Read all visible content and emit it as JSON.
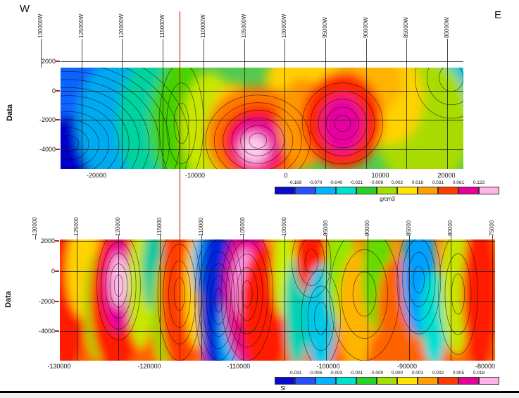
{
  "compass": {
    "west": "W",
    "east": "E"
  },
  "marker": {
    "color": "#b40000"
  },
  "sections": {
    "density": {
      "y_axis_label": "Data",
      "top_axis_ticks": [
        "130000W",
        "125000W",
        "120000W",
        "115000W",
        "110000W",
        "105000W",
        "100000W",
        "95000W",
        "90000W",
        "85000W",
        "80000W"
      ],
      "y_axis_ticks": [
        "2000",
        "0",
        "-2000",
        "-4000"
      ],
      "x_axis_ticks": [
        "-20000",
        "-10000",
        "0",
        "10000",
        "20000"
      ],
      "colorbar": {
        "ticks": [
          "-0.169",
          "-0.070",
          "-0.040",
          "-0.021",
          "-0.009",
          "0.002",
          "0.016",
          "0.031",
          "0.061",
          "0.123"
        ],
        "unit": "g/cm3",
        "segments": [
          "#0a0ac8",
          "#2850ff",
          "#00b4ff",
          "#00e0d0",
          "#28d028",
          "#a0e000",
          "#ffe400",
          "#ffa000",
          "#ff3c00",
          "#e60096",
          "#ffb4e6"
        ]
      }
    },
    "susceptibility": {
      "y_axis_label": "Data",
      "top_axis_ticks": [
        "130000",
        "125000",
        "120000",
        "115000",
        "110000",
        "105000",
        "100000",
        "95000",
        "90000",
        "85000",
        "80000",
        "75000"
      ],
      "y_axis_ticks": [
        "2000",
        "0",
        "-2000",
        "-4000"
      ],
      "x_axis_ticks": [
        "-130000",
        "-120000",
        "-110000",
        "-100000",
        "-90000",
        "-80000"
      ],
      "colorbar": {
        "ticks": [
          "-0.031",
          "-0.006",
          "-0.003",
          "-0.001",
          "-0.000",
          "0.000",
          "0.001",
          "0.002",
          "0.005",
          "0.018"
        ],
        "unit": "SI",
        "segments": [
          "#0a0ac8",
          "#2850ff",
          "#00b4ff",
          "#00e0d0",
          "#28d028",
          "#a0e000",
          "#ffe400",
          "#ffa000",
          "#ff3c00",
          "#e60096",
          "#ffb4e6"
        ]
      }
    }
  },
  "chart_data": [
    {
      "name": "density_model_section",
      "type": "heatmap",
      "units": "g/cm3",
      "y_axis_label": "Data",
      "y_axis_ticks": [
        2000,
        0,
        -2000,
        -4000
      ],
      "x_axis_bottom_ticks": [
        -20000,
        -10000,
        0,
        10000,
        20000
      ],
      "x_axis_top_ticks": [
        "130000W",
        "125000W",
        "120000W",
        "115000W",
        "110000W",
        "105000W",
        "100000W",
        "95000W",
        "90000W",
        "85000W",
        "80000W"
      ],
      "colorbar_ticks": [
        -0.169,
        -0.07,
        -0.04,
        -0.021,
        -0.009,
        0.002,
        0.016,
        0.031,
        0.061,
        0.123
      ],
      "description": "Contoured density section: strong low (blue) at west end, two dense highs with magenta/pink cores near centre and east, green/yellow background, red marker line near 115000W.",
      "base_color": "#55c94f",
      "blur": 7,
      "features": [
        {
          "cx": 0.97,
          "cy": 0.1,
          "rx": 0.1,
          "ry": 0.45,
          "c": "#00c8dc"
        },
        {
          "cx": 0.9,
          "cy": 0.55,
          "rx": 0.12,
          "ry": 0.65,
          "c": "#a8dc00"
        },
        {
          "cx": 0.82,
          "cy": 0.3,
          "rx": 0.08,
          "ry": 0.45,
          "c": "#ffd200"
        },
        {
          "cx": 0.1,
          "cy": 0.06,
          "rx": 0.12,
          "ry": 0.2,
          "c": "#00c8b4"
        },
        {
          "cx": 0.03,
          "cy": 0.35,
          "rx": 0.14,
          "ry": 0.6,
          "c": "#0a64ff"
        },
        {
          "cx": 0.02,
          "cy": 0.9,
          "rx": 0.12,
          "ry": 0.42,
          "c": "#0000cd"
        },
        {
          "cx": 0.14,
          "cy": 0.55,
          "rx": 0.1,
          "ry": 0.62,
          "c": "#00aaf0"
        },
        {
          "cx": 0.22,
          "cy": 0.55,
          "rx": 0.08,
          "ry": 0.62,
          "c": "#00d2a0"
        },
        {
          "cx": 0.3,
          "cy": 0.55,
          "rx": 0.08,
          "ry": 0.62,
          "c": "#46d200"
        },
        {
          "cx": 0.37,
          "cy": 0.6,
          "rx": 0.07,
          "ry": 0.55,
          "c": "#c8e600"
        },
        {
          "cx": 0.43,
          "cy": 0.65,
          "rx": 0.06,
          "ry": 0.5,
          "c": "#ffc800"
        },
        {
          "cx": 0.61,
          "cy": 0.1,
          "rx": 0.1,
          "ry": 0.25,
          "c": "#ffd200"
        },
        {
          "cx": 0.77,
          "cy": 0.15,
          "rx": 0.08,
          "ry": 0.3,
          "c": "#ffb400"
        },
        {
          "cx": 0.49,
          "cy": 0.68,
          "rx": 0.13,
          "ry": 0.5,
          "c": "#ff7800"
        },
        {
          "cx": 0.49,
          "cy": 0.72,
          "rx": 0.09,
          "ry": 0.36,
          "c": "#ff1e00"
        },
        {
          "cx": 0.485,
          "cy": 0.76,
          "rx": 0.06,
          "ry": 0.26,
          "c": "#eb00a0"
        },
        {
          "cx": 0.48,
          "cy": 0.8,
          "rx": 0.035,
          "ry": 0.15,
          "c": "#ffc8f0"
        },
        {
          "cx": 0.6,
          "cy": 0.55,
          "rx": 0.06,
          "ry": 0.45,
          "c": "#ff9600"
        },
        {
          "cx": 0.7,
          "cy": 0.52,
          "rx": 0.1,
          "ry": 0.48,
          "c": "#ff2800"
        },
        {
          "cx": 0.7,
          "cy": 0.56,
          "rx": 0.05,
          "ry": 0.28,
          "c": "#e600a0"
        }
      ],
      "contour_groups": [
        {
          "cx": 0.02,
          "cy": 0.75,
          "rx": 0.3,
          "ry": 0.95,
          "n": 12
        },
        {
          "cx": 0.49,
          "cy": 0.72,
          "rx": 0.13,
          "ry": 0.45,
          "n": 6
        },
        {
          "cx": 0.7,
          "cy": 0.55,
          "rx": 0.1,
          "ry": 0.4,
          "n": 5
        },
        {
          "cx": 0.97,
          "cy": 0.1,
          "rx": 0.09,
          "ry": 0.4,
          "n": 3
        },
        {
          "cx": 0.3,
          "cy": 0.55,
          "rx": 0.055,
          "ry": 0.6,
          "n": 3
        }
      ]
    },
    {
      "name": "susceptibility_model_section",
      "type": "heatmap",
      "units": "SI",
      "y_axis_label": "Data",
      "y_axis_ticks": [
        2000,
        0,
        -2000,
        -4000
      ],
      "x_axis_bottom_ticks": [
        -130000,
        -120000,
        -110000,
        -100000,
        -90000,
        -80000
      ],
      "x_axis_top_ticks": [
        130000,
        125000,
        120000,
        115000,
        110000,
        105000,
        100000,
        95000,
        90000,
        85000,
        80000,
        75000
      ],
      "colorbar_ticks": [
        -0.031,
        -0.006,
        -0.003,
        -0.001,
        -0.0,
        0.0,
        0.001,
        0.002,
        0.005,
        0.018
      ],
      "description": "Contoured susceptibility section: alternating vertical high (red/magenta) and low (blue/cyan) zones on orange background; deep blue low near -112000, magenta high near -108000, pink-cored high near -122000.",
      "base_color": "#ff9100",
      "blur": 6,
      "features": [
        {
          "cx": 0.5,
          "cy": 0.95,
          "rx": 0.55,
          "ry": 0.15,
          "c": "#ff6400"
        },
        {
          "cx": 0.015,
          "cy": 0.45,
          "rx": 0.05,
          "ry": 0.65,
          "c": "#ff1e00"
        },
        {
          "cx": 0.055,
          "cy": 0.25,
          "rx": 0.04,
          "ry": 0.4,
          "c": "#ffd200"
        },
        {
          "cx": 0.09,
          "cy": 0.55,
          "rx": 0.035,
          "ry": 0.45,
          "c": "#96dc00"
        },
        {
          "cx": 0.13,
          "cy": 0.5,
          "rx": 0.06,
          "ry": 0.6,
          "c": "#ff1e00"
        },
        {
          "cx": 0.135,
          "cy": 0.38,
          "rx": 0.035,
          "ry": 0.38,
          "c": "#eb00a0"
        },
        {
          "cx": 0.135,
          "cy": 0.34,
          "rx": 0.02,
          "ry": 0.22,
          "c": "#ffbeea"
        },
        {
          "cx": 0.185,
          "cy": 0.4,
          "rx": 0.03,
          "ry": 0.5,
          "c": "#c8e600"
        },
        {
          "cx": 0.215,
          "cy": 0.25,
          "rx": 0.025,
          "ry": 0.35,
          "c": "#00c8a0"
        },
        {
          "cx": 0.24,
          "cy": 0.6,
          "rx": 0.03,
          "ry": 0.45,
          "c": "#96dc00"
        },
        {
          "cx": 0.275,
          "cy": 0.45,
          "rx": 0.045,
          "ry": 0.65,
          "c": "#ff3c00"
        },
        {
          "cx": 0.315,
          "cy": 0.4,
          "rx": 0.03,
          "ry": 0.5,
          "c": "#ffd200"
        },
        {
          "cx": 0.345,
          "cy": 0.2,
          "rx": 0.04,
          "ry": 0.35,
          "c": "#00b4ff"
        },
        {
          "cx": 0.365,
          "cy": 0.5,
          "rx": 0.045,
          "ry": 0.7,
          "c": "#0028dc"
        },
        {
          "cx": 0.395,
          "cy": 0.75,
          "rx": 0.03,
          "ry": 0.35,
          "c": "#00b4ff"
        },
        {
          "cx": 0.43,
          "cy": 0.45,
          "rx": 0.055,
          "ry": 0.6,
          "c": "#eb0096"
        },
        {
          "cx": 0.425,
          "cy": 0.38,
          "rx": 0.028,
          "ry": 0.3,
          "c": "#ff96e6"
        },
        {
          "cx": 0.47,
          "cy": 0.6,
          "rx": 0.055,
          "ry": 0.55,
          "c": "#ff1e00"
        },
        {
          "cx": 0.515,
          "cy": 0.25,
          "rx": 0.025,
          "ry": 0.4,
          "c": "#c8f000"
        },
        {
          "cx": 0.545,
          "cy": 0.6,
          "rx": 0.028,
          "ry": 0.45,
          "c": "#00d2b4"
        },
        {
          "cx": 0.578,
          "cy": 0.18,
          "rx": 0.035,
          "ry": 0.28,
          "c": "#ff1e00"
        },
        {
          "cx": 0.6,
          "cy": 0.65,
          "rx": 0.035,
          "ry": 0.45,
          "c": "#00c8e6"
        },
        {
          "cx": 0.645,
          "cy": 0.25,
          "rx": 0.035,
          "ry": 0.45,
          "c": "#96e600"
        },
        {
          "cx": 0.68,
          "cy": 0.6,
          "rx": 0.04,
          "ry": 0.5,
          "c": "#ffb400"
        },
        {
          "cx": 0.73,
          "cy": 0.3,
          "rx": 0.035,
          "ry": 0.45,
          "c": "#64dc00"
        },
        {
          "cx": 0.77,
          "cy": 0.6,
          "rx": 0.04,
          "ry": 0.45,
          "c": "#ff6400"
        },
        {
          "cx": 0.825,
          "cy": 0.3,
          "rx": 0.04,
          "ry": 0.5,
          "c": "#00a0ff"
        },
        {
          "cx": 0.86,
          "cy": 0.65,
          "rx": 0.03,
          "ry": 0.4,
          "c": "#00e0d2"
        },
        {
          "cx": 0.91,
          "cy": 0.4,
          "rx": 0.035,
          "ry": 0.55,
          "c": "#c8e600"
        },
        {
          "cx": 0.965,
          "cy": 0.45,
          "rx": 0.04,
          "ry": 0.65,
          "c": "#ff1e00"
        }
      ],
      "contour_groups": [
        {
          "cx": 0.135,
          "cy": 0.38,
          "rx": 0.05,
          "ry": 0.45,
          "n": 5
        },
        {
          "cx": 0.275,
          "cy": 0.45,
          "rx": 0.05,
          "ry": 0.55,
          "n": 4
        },
        {
          "cx": 0.365,
          "cy": 0.5,
          "rx": 0.055,
          "ry": 0.6,
          "n": 6
        },
        {
          "cx": 0.43,
          "cy": 0.45,
          "rx": 0.06,
          "ry": 0.55,
          "n": 5
        },
        {
          "cx": 0.578,
          "cy": 0.18,
          "rx": 0.045,
          "ry": 0.3,
          "n": 3
        },
        {
          "cx": 0.6,
          "cy": 0.65,
          "rx": 0.045,
          "ry": 0.4,
          "n": 3
        },
        {
          "cx": 0.7,
          "cy": 0.45,
          "rx": 0.08,
          "ry": 0.55,
          "n": 3
        },
        {
          "cx": 0.825,
          "cy": 0.33,
          "rx": 0.05,
          "ry": 0.45,
          "n": 4
        },
        {
          "cx": 0.915,
          "cy": 0.45,
          "rx": 0.045,
          "ry": 0.5,
          "n": 3
        }
      ]
    }
  ]
}
